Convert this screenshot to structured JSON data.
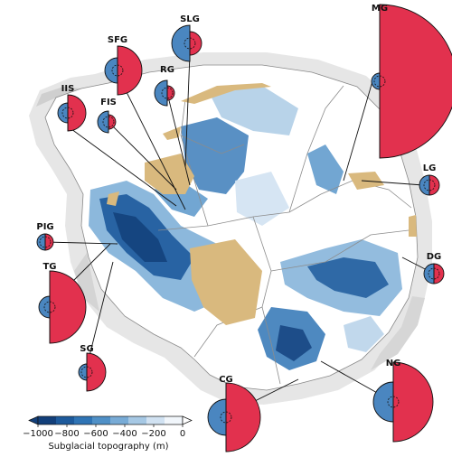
{
  "colorbar": {
    "title": "Subglacial topography (m)",
    "ticks": [
      "−1000",
      "−800",
      "−600",
      "−400",
      "−200",
      "0"
    ],
    "colors": [
      "#123f7a",
      "#1d5a9c",
      "#2f74b5",
      "#4f90c7",
      "#78abd6",
      "#a6c8e4",
      "#d1e2f2",
      "#f1f6fb"
    ]
  },
  "colors": {
    "left_half": "#4a86c0",
    "right_half": "#e2314e",
    "ice_shelf": "#d9b97e",
    "grounded_shade": "#d9d9d9",
    "outline": "#111111"
  },
  "glaciers": [
    {
      "id": "iis",
      "label": "IIS",
      "left_size": "small",
      "right_size": "medium"
    },
    {
      "id": "sfg",
      "label": "SFG",
      "left_size": "small",
      "right_size": "medium"
    },
    {
      "id": "slg",
      "label": "SLG",
      "left_size": "medium",
      "right_size": "small"
    },
    {
      "id": "rg",
      "label": "RG",
      "left_size": "small",
      "right_size": "small"
    },
    {
      "id": "fis",
      "label": "FIS",
      "left_size": "small",
      "right_size": "tiny"
    },
    {
      "id": "mg",
      "label": "MG",
      "left_size": "small",
      "right_size": "very large"
    },
    {
      "id": "lg",
      "label": "LG",
      "left_size": "small",
      "right_size": "small"
    },
    {
      "id": "dg",
      "label": "DG",
      "left_size": "small",
      "right_size": "small"
    },
    {
      "id": "pig",
      "label": "PIG",
      "left_size": "small",
      "right_size": "small"
    },
    {
      "id": "tg",
      "label": "TG",
      "left_size": "small",
      "right_size": "large"
    },
    {
      "id": "sg",
      "label": "SG",
      "left_size": "small",
      "right_size": "medium"
    },
    {
      "id": "cg",
      "label": "CG",
      "left_size": "medium",
      "right_size": "large"
    },
    {
      "id": "ng",
      "label": "NG",
      "left_size": "medium",
      "right_size": "large"
    }
  ]
}
